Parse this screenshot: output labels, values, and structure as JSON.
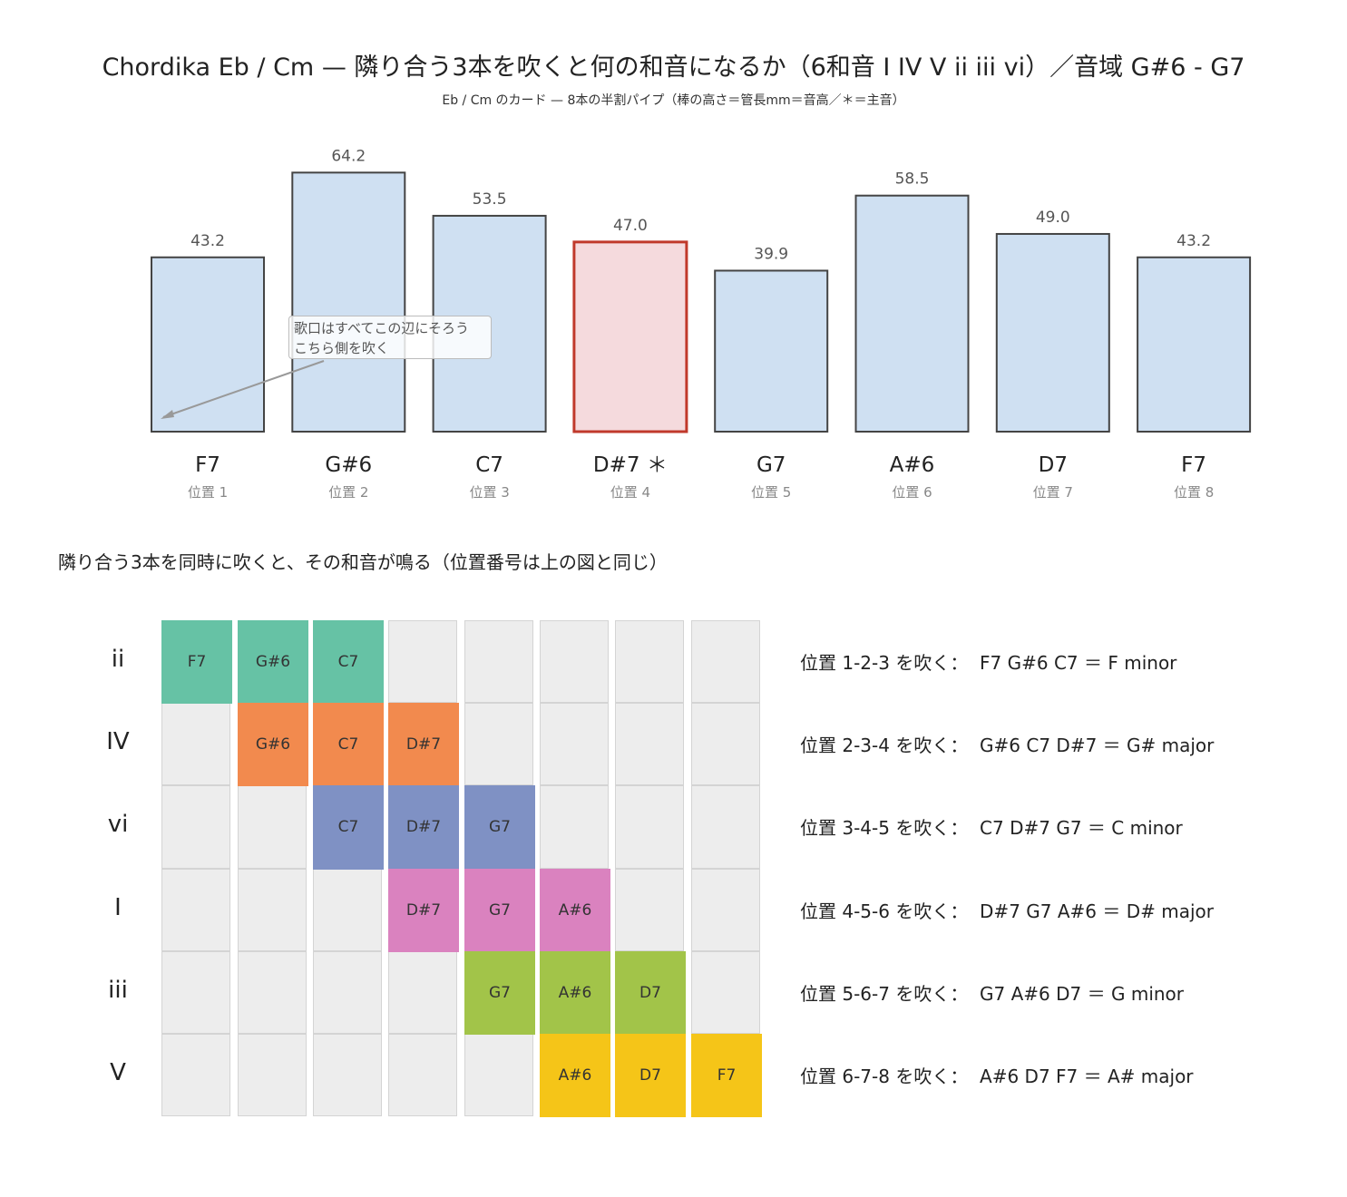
{
  "title": "Chordika Eb / Cm — 隣り合う3本を吹くと何の和音になるか（6和音 I IV V ii iii vi）／音域 G#6 - G7",
  "subtitle": "Eb / Cm のカード — 8本の半割パイプ（棒の高さ＝管長mm＝音高／＊＝主音）",
  "annotation": {
    "line1": "歌口はすべてこの辺にそろう",
    "line2": "こちら側を吹く"
  },
  "section_title": "隣り合う3本を同時に吹くと、その和音が鳴る（位置番号は上の図と同じ）",
  "chart_data": {
    "type": "bar",
    "categories": [
      "F7",
      "G#6",
      "C7",
      "D#7",
      "G7",
      "A#6",
      "D7",
      "F7"
    ],
    "tonic_marker": "＊",
    "tonic_index": 3,
    "positions": [
      "位置 1",
      "位置 2",
      "位置 3",
      "位置 4",
      "位置 5",
      "位置 6",
      "位置 7",
      "位置 8"
    ],
    "values": [
      43.2,
      64.2,
      53.5,
      47.0,
      39.9,
      58.5,
      49.0,
      43.2
    ],
    "value_labels": [
      "43.2",
      "64.2",
      "53.5",
      "47.0",
      "39.9",
      "58.5",
      "49.0",
      "43.2"
    ],
    "ylim": [
      0,
      68
    ],
    "colors": {
      "bar": "#cfe0f2",
      "tonic_bar": "#f5dadd",
      "bar_edge": "#444444",
      "tonic_edge": "#c0392b"
    }
  },
  "chords": [
    {
      "roman": "ii",
      "start": 1,
      "notes": [
        "F7",
        "G#6",
        "C7"
      ],
      "range": "1-2-3",
      "name": "F minor",
      "color": "#66c2a5"
    },
    {
      "roman": "IV",
      "start": 2,
      "notes": [
        "G#6",
        "C7",
        "D#7"
      ],
      "range": "2-3-4",
      "name": "G# major",
      "color": "#f28a4e"
    },
    {
      "roman": "vi",
      "start": 3,
      "notes": [
        "C7",
        "D#7",
        "G7"
      ],
      "range": "3-4-5",
      "name": "C minor",
      "color": "#7f91c4"
    },
    {
      "roman": "I",
      "start": 4,
      "notes": [
        "D#7",
        "G7",
        "A#6"
      ],
      "range": "4-5-6",
      "name": "D# major",
      "color": "#da82bf"
    },
    {
      "roman": "iii",
      "start": 5,
      "notes": [
        "G7",
        "A#6",
        "D7"
      ],
      "range": "5-6-7",
      "name": "G minor",
      "color": "#a2c449"
    },
    {
      "roman": "V",
      "start": 6,
      "notes": [
        "A#6",
        "D7",
        "F7"
      ],
      "range": "6-7-8",
      "name": "A# major",
      "color": "#f5c518"
    }
  ],
  "row_text": {
    "prefix": "位置 ",
    "mid": " を吹く：  ",
    "equals": " ＝ "
  }
}
